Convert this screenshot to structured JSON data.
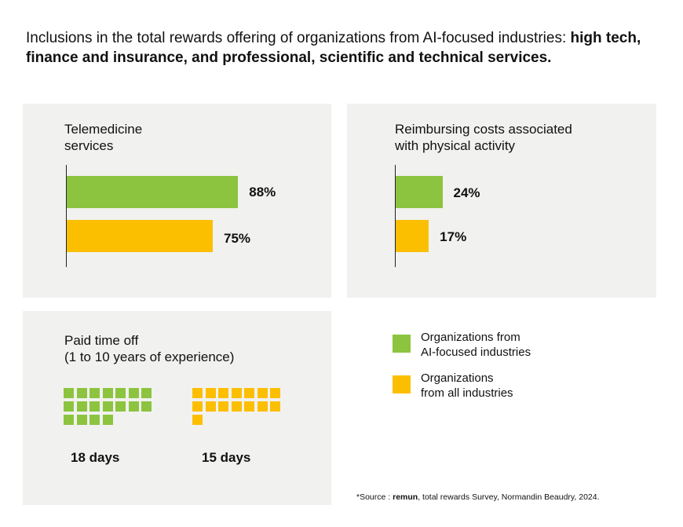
{
  "header": {
    "title_plain": "Inclusions in the total rewards offering of organizations from AI-focused industries: ",
    "title_bold": "high tech, finance and insurance, and professional, scientific and technical services."
  },
  "colors": {
    "ai": "#8cc43f",
    "all": "#fcbf00",
    "panel": "#f1f1f0"
  },
  "chart_data": [
    {
      "type": "bar",
      "orientation": "horizontal",
      "title": "Telemedicine\nservices",
      "series": [
        {
          "name": "Organizations from AI-focused industries",
          "value": 88,
          "label": "88%"
        },
        {
          "name": "Organizations from all industries",
          "value": 75,
          "label": "75%"
        }
      ],
      "xlim": [
        0,
        100
      ]
    },
    {
      "type": "bar",
      "orientation": "horizontal",
      "title": "Reimbursing costs associated\nwith physical activity",
      "series": [
        {
          "name": "Organizations from AI-focused industries",
          "value": 24,
          "label": "24%"
        },
        {
          "name": "Organizations from all industries",
          "value": 17,
          "label": "17%"
        }
      ],
      "xlim": [
        0,
        100
      ]
    },
    {
      "type": "pictogram",
      "title": "Paid time off\n(1 to 10 years of experience)",
      "series": [
        {
          "name": "Organizations from AI-focused industries",
          "value": 18,
          "label": "18 days"
        },
        {
          "name": "Organizations from all industries",
          "value": 15,
          "label": "15 days"
        }
      ]
    }
  ],
  "legend": {
    "items": [
      {
        "label": "Organizations from\nAI-focused industries"
      },
      {
        "label": "Organizations\nfrom all industries"
      }
    ]
  },
  "source": {
    "prefix": "*Source : ",
    "brand": "remun",
    "rest": ", total rewards Survey, Normandin Beaudry, 2024."
  }
}
